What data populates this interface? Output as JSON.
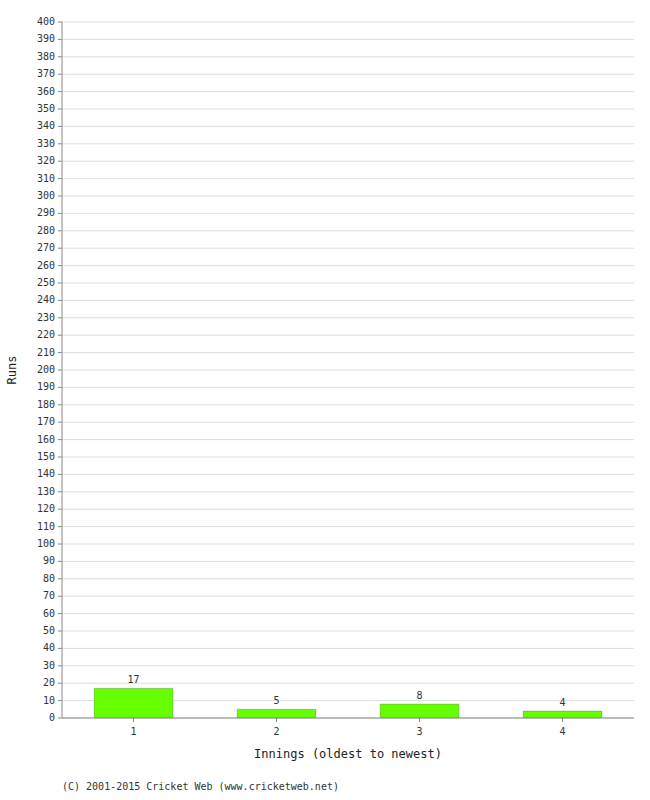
{
  "chart_data": {
    "type": "bar",
    "categories": [
      1,
      2,
      3,
      4
    ],
    "values": [
      17,
      5,
      8,
      4
    ],
    "color": "#66ff00",
    "xlabel": "Innings (oldest to newest)",
    "ylabel": "Runs",
    "xlim": [
      0.5,
      4.5
    ],
    "ylim": [
      0,
      400
    ],
    "yticks": [
      0,
      10,
      20,
      30,
      40,
      50,
      60,
      70,
      80,
      90,
      100,
      110,
      120,
      130,
      140,
      150,
      160,
      170,
      180,
      190,
      200,
      210,
      220,
      230,
      240,
      250,
      260,
      270,
      280,
      290,
      300,
      310,
      320,
      330,
      340,
      350,
      360,
      370,
      380,
      390,
      400
    ],
    "grid": true,
    "data_labels": true,
    "footer": "(C) 2001-2015 Cricket Web (www.cricketweb.net)"
  }
}
